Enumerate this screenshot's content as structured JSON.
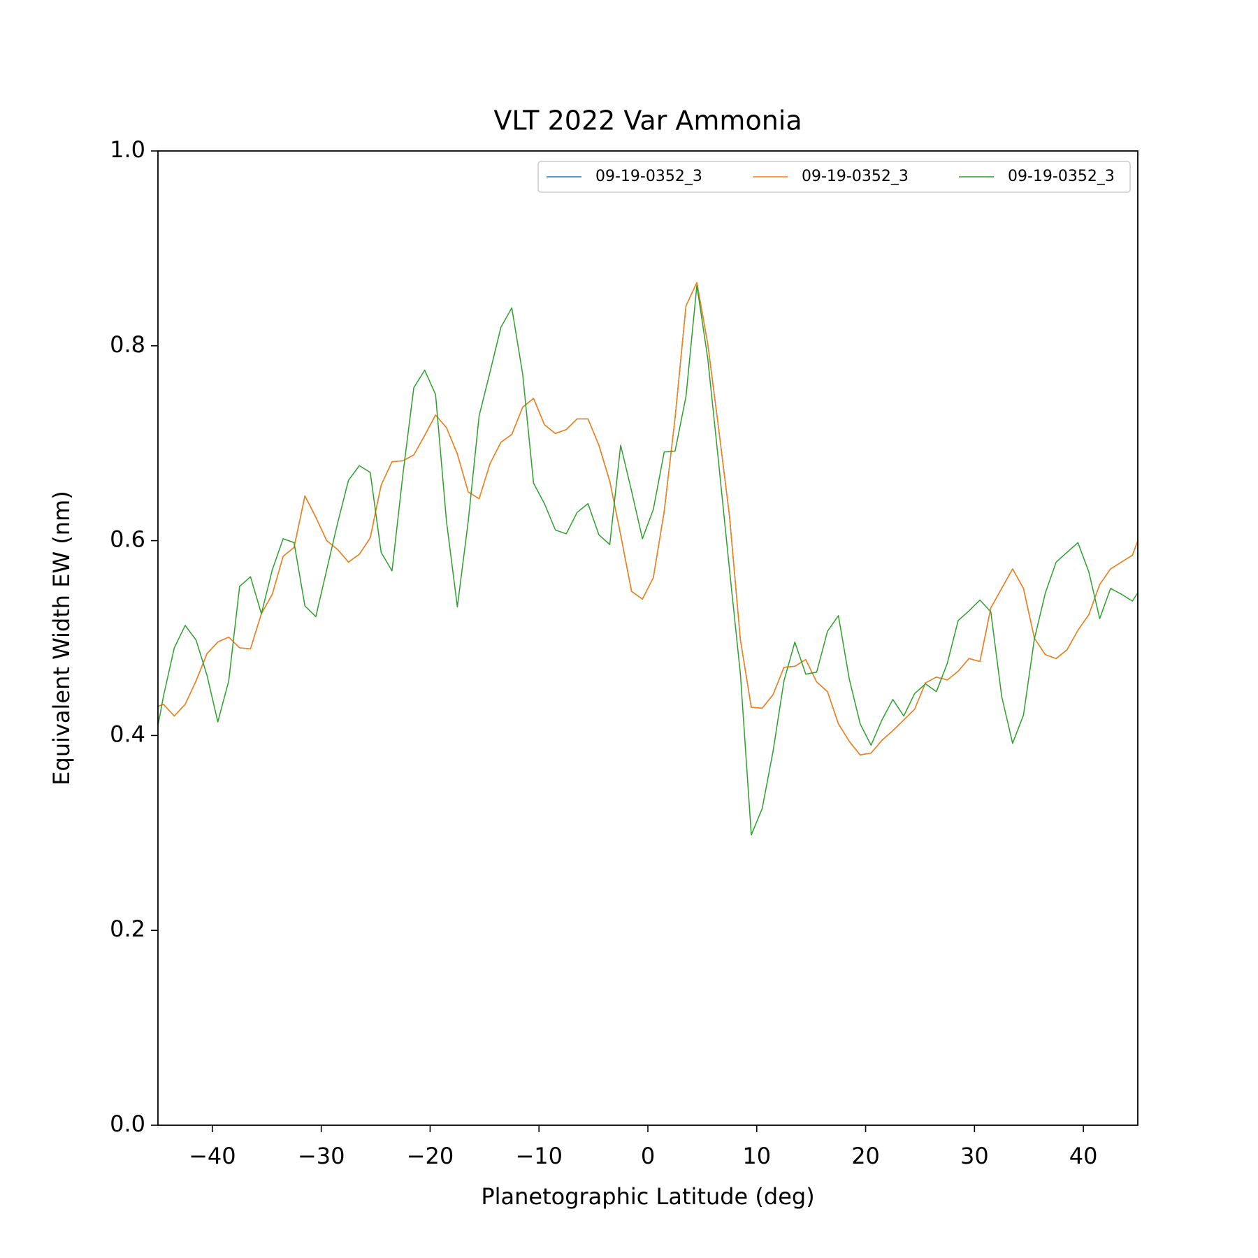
{
  "chart_data": {
    "type": "line",
    "title": "VLT 2022 Var Ammonia",
    "xlabel": "Planetographic Latitude (deg)",
    "ylabel": "Equivalent Width EW (nm)",
    "xlim": [
      -45,
      45
    ],
    "ylim": [
      0,
      1
    ],
    "xticks": [
      {
        "value": -40,
        "label": "−40"
      },
      {
        "value": -30,
        "label": "−30"
      },
      {
        "value": -20,
        "label": "−20"
      },
      {
        "value": -10,
        "label": "−10"
      },
      0,
      10,
      20,
      30,
      40
    ],
    "yticks": [
      {
        "value": 0,
        "label": "0.0"
      },
      0.2,
      0.4,
      0.6,
      0.8,
      {
        "value": 1,
        "label": "1.0"
      }
    ],
    "legend": "upper right",
    "legend_columns": 3,
    "x": [
      -45.5,
      -44.5,
      -43.5,
      -42.5,
      -41.5,
      -40.5,
      -39.5,
      -38.5,
      -37.5,
      -36.5,
      -35.5,
      -34.5,
      -33.5,
      -32.5,
      -31.5,
      -30.5,
      -29.5,
      -28.5,
      -27.5,
      -26.5,
      -25.5,
      -24.5,
      -23.5,
      -22.5,
      -21.5,
      -20.5,
      -19.5,
      -18.5,
      -17.5,
      -16.5,
      -15.5,
      -14.5,
      -13.5,
      -12.5,
      -11.5,
      -10.5,
      -9.5,
      -8.5,
      -7.5,
      -6.5,
      -5.5,
      -4.5,
      -3.5,
      -2.5,
      -1.5,
      -0.5,
      0.5,
      1.5,
      2.5,
      3.5,
      4.5,
      5.5,
      6.5,
      7.5,
      8.5,
      9.5,
      10.5,
      11.5,
      12.5,
      13.5,
      14.5,
      15.5,
      16.5,
      17.5,
      18.5,
      19.5,
      20.5,
      21.5,
      22.5,
      23.5,
      24.5,
      25.5,
      26.5,
      27.5,
      28.5,
      29.5,
      30.5,
      31.5,
      32.5,
      33.5,
      34.5,
      35.5,
      36.5,
      37.5,
      38.5,
      39.5,
      40.5,
      41.5,
      42.5,
      43.5,
      44.5,
      45.5
    ],
    "series": [
      {
        "name": "09-19-0352_3",
        "color": "#1f77b4",
        "values": [
          0.428,
          0.432,
          0.42,
          0.432,
          0.456,
          0.484,
          0.496,
          0.501,
          0.49,
          0.489,
          0.525,
          0.545,
          0.584,
          0.593,
          0.646,
          0.624,
          0.6,
          0.591,
          0.578,
          0.586,
          0.603,
          0.657,
          0.681,
          0.682,
          0.688,
          0.708,
          0.729,
          0.716,
          0.689,
          0.65,
          0.643,
          0.679,
          0.701,
          0.709,
          0.737,
          0.746,
          0.719,
          0.71,
          0.714,
          0.725,
          0.725,
          0.698,
          0.661,
          0.606,
          0.548,
          0.54,
          0.562,
          0.63,
          0.726,
          0.841,
          0.865,
          0.802,
          0.715,
          0.625,
          0.498,
          0.429,
          0.428,
          0.442,
          0.47,
          0.471,
          0.478,
          0.455,
          0.445,
          0.412,
          0.394,
          0.38,
          0.382,
          0.395,
          0.405,
          0.416,
          0.427,
          0.454,
          0.46,
          0.457,
          0.466,
          0.479,
          0.476,
          0.531,
          0.551,
          0.571,
          0.551,
          0.5,
          0.483,
          0.479,
          0.488,
          0.508,
          0.524,
          0.555,
          0.571,
          0.578,
          0.585,
          0.615
        ]
      },
      {
        "name": "09-19-0352_3",
        "color": "#ff7f0e",
        "values": [
          0.428,
          0.432,
          0.42,
          0.432,
          0.456,
          0.484,
          0.496,
          0.501,
          0.49,
          0.489,
          0.525,
          0.545,
          0.584,
          0.593,
          0.646,
          0.624,
          0.6,
          0.591,
          0.578,
          0.586,
          0.603,
          0.657,
          0.681,
          0.682,
          0.688,
          0.708,
          0.729,
          0.716,
          0.689,
          0.65,
          0.643,
          0.679,
          0.701,
          0.709,
          0.737,
          0.746,
          0.719,
          0.71,
          0.714,
          0.725,
          0.725,
          0.698,
          0.661,
          0.606,
          0.548,
          0.54,
          0.562,
          0.63,
          0.726,
          0.841,
          0.865,
          0.802,
          0.715,
          0.625,
          0.498,
          0.429,
          0.428,
          0.442,
          0.47,
          0.471,
          0.478,
          0.455,
          0.445,
          0.412,
          0.394,
          0.38,
          0.382,
          0.395,
          0.405,
          0.416,
          0.427,
          0.454,
          0.46,
          0.457,
          0.466,
          0.479,
          0.476,
          0.531,
          0.551,
          0.571,
          0.551,
          0.5,
          0.483,
          0.479,
          0.488,
          0.508,
          0.524,
          0.555,
          0.571,
          0.578,
          0.585,
          0.615
        ]
      },
      {
        "name": "09-19-0352_3",
        "color": "#2ca02c",
        "values": [
          0.38,
          0.44,
          0.49,
          0.513,
          0.498,
          0.462,
          0.414,
          0.456,
          0.553,
          0.563,
          0.525,
          0.57,
          0.602,
          0.598,
          0.533,
          0.522,
          0.57,
          0.618,
          0.662,
          0.677,
          0.67,
          0.588,
          0.569,
          0.668,
          0.757,
          0.775,
          0.75,
          0.62,
          0.532,
          0.62,
          0.728,
          0.773,
          0.819,
          0.839,
          0.771,
          0.659,
          0.638,
          0.611,
          0.607,
          0.629,
          0.638,
          0.606,
          0.596,
          0.698,
          0.651,
          0.602,
          0.632,
          0.691,
          0.692,
          0.748,
          0.862,
          0.787,
          0.68,
          0.57,
          0.463,
          0.298,
          0.325,
          0.384,
          0.456,
          0.496,
          0.463,
          0.465,
          0.507,
          0.523,
          0.458,
          0.412,
          0.39,
          0.416,
          0.437,
          0.42,
          0.443,
          0.453,
          0.445,
          0.474,
          0.518,
          0.528,
          0.539,
          0.527,
          0.44,
          0.392,
          0.421,
          0.499,
          0.546,
          0.578,
          0.588,
          0.598,
          0.568,
          0.52,
          0.551,
          0.545,
          0.538,
          0.555
        ]
      }
    ]
  }
}
